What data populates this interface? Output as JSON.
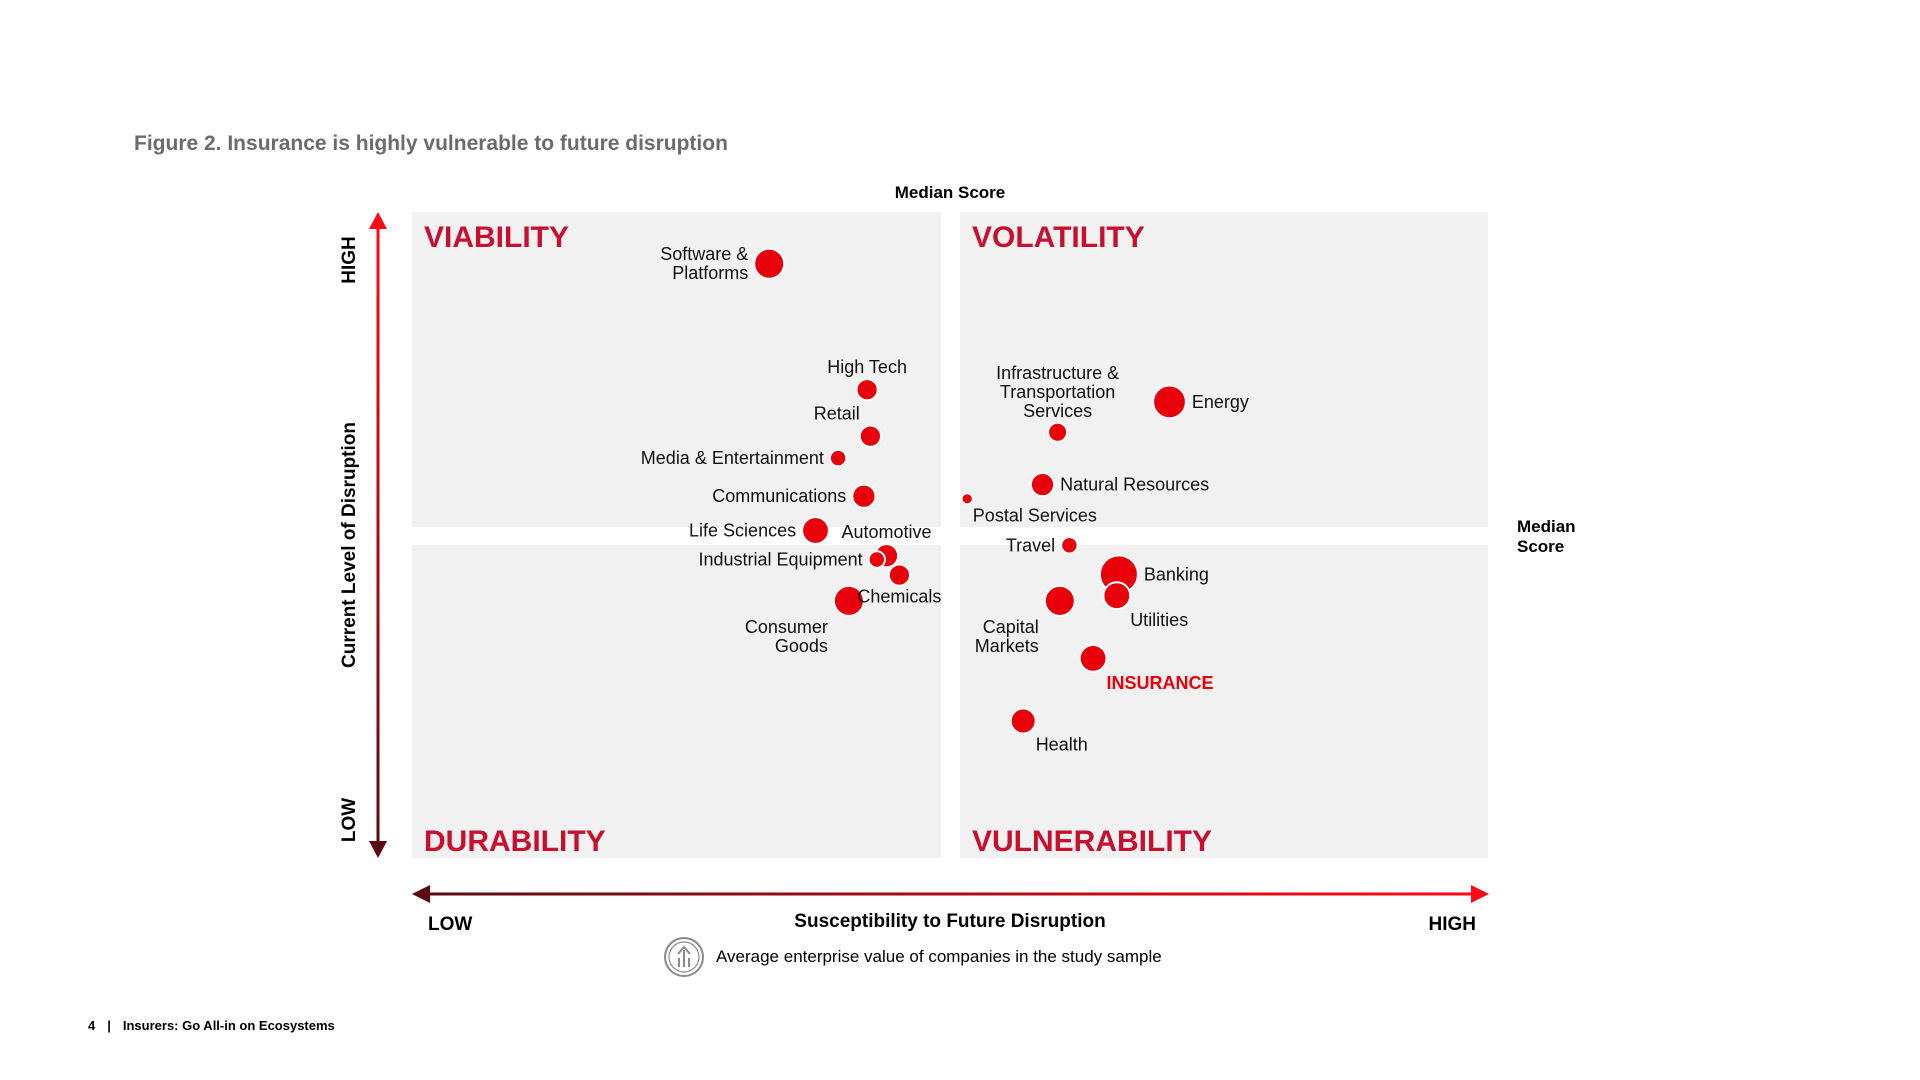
{
  "figure_title": "Figure 2. Insurance is highly vulnerable to future disruption",
  "footer": {
    "page_number": "4",
    "separator": "|",
    "doc_title": "Insurers: Go All-in on Ecosystems"
  },
  "colors": {
    "accent": "#E8000A",
    "quadrant_label": "#C8102E",
    "quadrant_bg": "#F1F1F1",
    "axis_dark": "#5A0A14",
    "axis_bright": "#FF0A14",
    "legend_icon": "#8A8A8A"
  },
  "legend": {
    "icon": "coin-growth-icon",
    "text": "Average enterprise value of companies in the study sample"
  },
  "chart_data": {
    "type": "scatter",
    "variant": "bubble",
    "title": "Figure 2. Insurance is highly vulnerable to future disruption",
    "xlabel": "Susceptibility to Future Disruption",
    "ylabel": "Current Level of Disruption",
    "x_axis_ends": {
      "low": "LOW",
      "high": "HIGH"
    },
    "y_axis_ends": {
      "low": "LOW",
      "high": "HIGH"
    },
    "xlim": [
      0,
      100
    ],
    "ylim": [
      0,
      100
    ],
    "median_x": 50,
    "median_y": 50,
    "median_label_top": "Median Score",
    "median_label_right": [
      "Median",
      "Score"
    ],
    "quadrants": {
      "top_left": "VIABILITY",
      "top_right": "VOLATILITY",
      "bottom_left": "DURABILITY",
      "bottom_right": "VULNERABILITY"
    },
    "size_legend": "Average enterprise value of companies in the study sample",
    "points": [
      {
        "name": "Software & Platforms",
        "lines": [
          "Software &",
          "Platforms"
        ],
        "x": 33.2,
        "y": 92.0,
        "size": 5,
        "label_side": "left",
        "align": "left"
      },
      {
        "name": "High Tech",
        "lines": [
          "High Tech"
        ],
        "x": 42.3,
        "y": 72.5,
        "size": 2.5,
        "label_side": "above",
        "align": "middle"
      },
      {
        "name": "Retail",
        "lines": [
          "Retail"
        ],
        "x": 42.6,
        "y": 65.3,
        "size": 2.5,
        "label_side": "aboveleft",
        "align": "right"
      },
      {
        "name": "Media & Entertainment",
        "lines": [
          "Media & Entertainment"
        ],
        "x": 39.6,
        "y": 61.9,
        "size": 1.5,
        "label_side": "left",
        "align": "right"
      },
      {
        "name": "Communications",
        "lines": [
          "Communications"
        ],
        "x": 42.0,
        "y": 56.0,
        "size": 3,
        "label_side": "left",
        "align": "right"
      },
      {
        "name": "Life Sciences",
        "lines": [
          "Life Sciences"
        ],
        "x": 37.5,
        "y": 50.7,
        "size": 4,
        "label_side": "left",
        "align": "right"
      },
      {
        "name": "Automotive",
        "lines": [
          "Automotive"
        ],
        "x": 44.1,
        "y": 46.8,
        "size": 3,
        "label_side": "above",
        "align": "middle"
      },
      {
        "name": "Industrial Equipment",
        "lines": [
          "Industrial Equipment"
        ],
        "x": 43.2,
        "y": 46.2,
        "size": 1.5,
        "label_side": "left",
        "align": "right"
      },
      {
        "name": "Chemicals",
        "lines": [
          "Chemicals"
        ],
        "x": 45.3,
        "y": 43.8,
        "size": 2.5,
        "label_side": "below",
        "align": "left"
      },
      {
        "name": "Consumer Goods",
        "lines": [
          "Consumer",
          "Goods"
        ],
        "x": 40.6,
        "y": 39.8,
        "size": 5,
        "label_side": "belowleft",
        "align": "middle"
      },
      {
        "name": "Infrastructure & Transportation Services",
        "lines": [
          "Infrastructure &",
          "Transportation",
          "Services"
        ],
        "x": 60.0,
        "y": 65.9,
        "size": 2,
        "label_side": "above",
        "align": "middle"
      },
      {
        "name": "Energy",
        "lines": [
          "Energy"
        ],
        "x": 70.4,
        "y": 70.6,
        "size": 6,
        "label_side": "right",
        "align": "left"
      },
      {
        "name": "Natural Resources",
        "lines": [
          "Natural Resources"
        ],
        "x": 58.6,
        "y": 57.8,
        "size": 3,
        "label_side": "right",
        "align": "left"
      },
      {
        "name": "Postal Services",
        "lines": [
          "Postal Services"
        ],
        "x": 51.6,
        "y": 55.6,
        "size": 0.7,
        "label_side": "belowright",
        "align": "left"
      },
      {
        "name": "Travel",
        "lines": [
          "Travel"
        ],
        "x": 61.1,
        "y": 48.4,
        "size": 1.5,
        "label_side": "left",
        "align": "right"
      },
      {
        "name": "Banking",
        "lines": [
          "Banking"
        ],
        "x": 65.7,
        "y": 43.9,
        "size": 8,
        "label_side": "right",
        "align": "left"
      },
      {
        "name": "Utilities",
        "lines": [
          "Utilities"
        ],
        "x": 65.5,
        "y": 40.6,
        "size": 4,
        "label_side": "belowright",
        "align": "left"
      },
      {
        "name": "Capital Markets",
        "lines": [
          "Capital",
          "Markets"
        ],
        "x": 60.2,
        "y": 39.8,
        "size": 5,
        "label_side": "belowleft",
        "align": "middle"
      },
      {
        "name": "INSURANCE",
        "lines": [
          "INSURANCE"
        ],
        "x": 63.3,
        "y": 30.9,
        "size": 4,
        "label_side": "belowright",
        "align": "left",
        "highlight": true
      },
      {
        "name": "Health",
        "lines": [
          "Health"
        ],
        "x": 56.8,
        "y": 21.2,
        "size": 3.5,
        "label_side": "belowright",
        "align": "left"
      }
    ]
  }
}
